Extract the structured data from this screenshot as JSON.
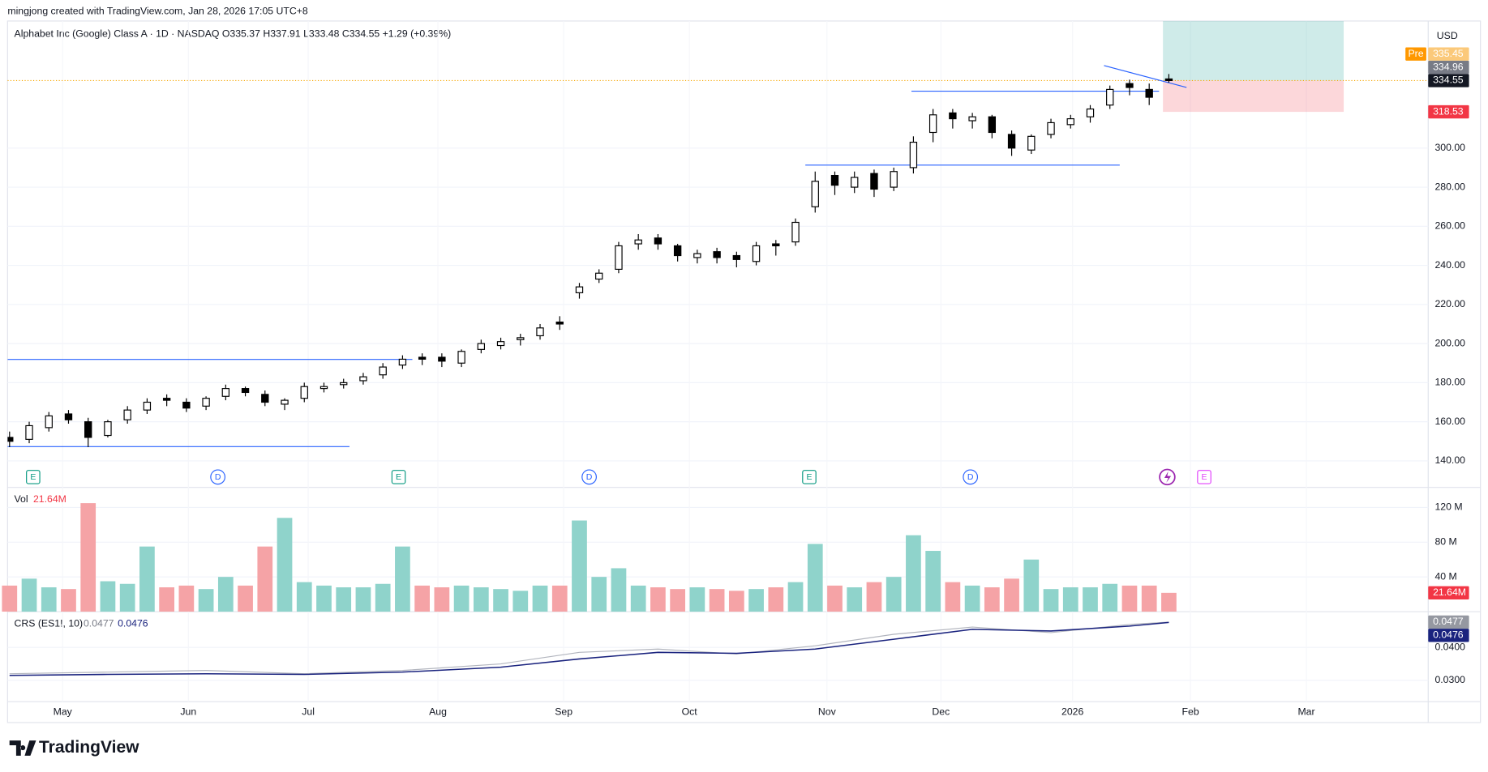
{
  "header": {
    "author_line": "mingjong created with TradingView.com, Jan 28, 2026 17:05 UTC+8",
    "legend": "Alphabet Inc (Google) Class A · 1D · NASDAQ  O335.37  H337.91  L333.48  C334.55  +1.29 (+0.39%)"
  },
  "footer": {
    "brand": "TradingView"
  },
  "chart_data": {
    "type": "candlestick",
    "currency": "USD",
    "xlim": [
      -0.1,
      72.2
    ],
    "xticks": [
      {
        "value": 2.7,
        "label": "May"
      },
      {
        "value": 9.1,
        "label": "Jun"
      },
      {
        "value": 15.2,
        "label": "Jul"
      },
      {
        "value": 21.8,
        "label": "Aug"
      },
      {
        "value": 28.2,
        "label": "Sep"
      },
      {
        "value": 34.6,
        "label": "Oct"
      },
      {
        "value": 41.6,
        "label": "Nov"
      },
      {
        "value": 47.4,
        "label": "Dec"
      },
      {
        "value": 54.1,
        "label": "2026"
      },
      {
        "value": 60.1,
        "label": "Feb"
      },
      {
        "value": 66.0,
        "label": "Mar"
      }
    ],
    "ylim": [
      126.4,
      365
    ],
    "yticks": [
      {
        "value": 140,
        "label": "140.00"
      },
      {
        "value": 160,
        "label": "160.00"
      },
      {
        "value": 180,
        "label": "180.00"
      },
      {
        "value": 200,
        "label": "200.00"
      },
      {
        "value": 220,
        "label": "220.00"
      },
      {
        "value": 240,
        "label": "240.00"
      },
      {
        "value": 260,
        "label": "260.00"
      },
      {
        "value": 280,
        "label": "280.00"
      },
      {
        "value": 300,
        "label": "300.00"
      }
    ],
    "grid": true,
    "up_color": "#ffffff",
    "down_color": "#000000",
    "open": [
      152,
      151,
      157,
      164,
      160,
      153,
      161,
      166,
      172,
      170,
      168,
      173,
      177,
      174,
      169,
      172,
      177,
      179,
      181,
      184,
      189,
      193,
      193,
      190,
      197,
      199,
      202,
      204,
      211,
      226,
      233,
      238,
      251,
      254,
      250,
      244,
      247,
      245,
      242,
      251,
      252,
      270,
      286,
      280,
      287,
      280,
      290,
      308,
      318,
      314,
      316,
      307,
      299,
      307,
      312,
      316,
      322,
      333,
      330,
      335.37
    ],
    "high": [
      155,
      160,
      165,
      166,
      162,
      161,
      168,
      172,
      174,
      172,
      173,
      179,
      178,
      176,
      172,
      180,
      180,
      182,
      185,
      190,
      194,
      195,
      195,
      197,
      202,
      203,
      205,
      210,
      214,
      231,
      238,
      252,
      256,
      256,
      251,
      248,
      249,
      247,
      252,
      253,
      264,
      288,
      288,
      288,
      289,
      290,
      306,
      320,
      320,
      318,
      317,
      309,
      307,
      315,
      317,
      322,
      332,
      335,
      333,
      337.91
    ],
    "low": [
      147,
      149,
      155,
      159,
      147,
      152,
      159,
      164,
      168,
      165,
      166,
      171,
      173,
      168,
      166,
      170,
      175,
      177,
      179,
      182,
      187,
      189,
      188,
      188,
      195,
      197,
      199,
      202,
      207,
      223,
      231,
      236,
      248,
      248,
      242,
      241,
      241,
      239,
      240,
      245,
      250,
      267,
      276,
      277,
      275,
      278,
      287,
      303,
      310,
      310,
      305,
      296,
      297,
      305,
      310,
      313,
      320,
      327,
      322,
      333.48
    ],
    "close": [
      150,
      158,
      163,
      161,
      152,
      160,
      166,
      170,
      171,
      167,
      172,
      177,
      175,
      170,
      171,
      178,
      178,
      180,
      183,
      188,
      192,
      192,
      191,
      196,
      200,
      201,
      203,
      208,
      210,
      229,
      236,
      250,
      253,
      251,
      245,
      246,
      244,
      243,
      250,
      250,
      262,
      283,
      281,
      285,
      279,
      288,
      303,
      317,
      315,
      316,
      308,
      300,
      306,
      313,
      315,
      320,
      330,
      331,
      326,
      334.55
    ],
    "line_color": "#2962ff",
    "hlines": [
      {
        "y": 191.9,
        "x": [
          -0.1,
          20.5
        ]
      },
      {
        "y": 147.3,
        "x": [
          -0.1,
          17.3
        ]
      },
      {
        "y": 291.3,
        "x": [
          40.5,
          56.5
        ]
      },
      {
        "y": 329.1,
        "x": [
          45.9,
          58.5
        ]
      }
    ],
    "trendline": {
      "x": [
        55.7,
        59.9
      ],
      "y": [
        342.2,
        331
      ]
    },
    "position": {
      "x": [
        58.7,
        67.9
      ],
      "entry": 334.55,
      "stop": 318.53,
      "target": 365,
      "profit_color": "rgba(38,166,154,0.22)",
      "loss_color": "rgba(242,54,69,0.2)"
    },
    "price_labels": [
      {
        "value": 335.45,
        "tag": "Pre",
        "tag_color": "#ff9800",
        "color": "#fbc97a"
      },
      {
        "value": 334.96,
        "color": "#787b86"
      },
      {
        "value": 334.55,
        "color": "#131722"
      },
      {
        "value": 318.53,
        "color": "#f23645"
      }
    ],
    "events": [
      {
        "x": 1.2,
        "label": "E",
        "shape": "square",
        "color": "#089981"
      },
      {
        "x": 10.6,
        "label": "D",
        "shape": "circle",
        "color": "#2962ff"
      },
      {
        "x": 19.8,
        "label": "E",
        "shape": "square",
        "color": "#089981"
      },
      {
        "x": 29.5,
        "label": "D",
        "shape": "circle",
        "color": "#2962ff"
      },
      {
        "x": 40.7,
        "label": "E",
        "shape": "square",
        "color": "#089981"
      },
      {
        "x": 48.9,
        "label": "D",
        "shape": "circle",
        "color": "#2962ff"
      },
      {
        "x": 60.8,
        "label": "E",
        "shape": "square",
        "color": "#e040fb"
      }
    ],
    "volume": {
      "title": "Vol",
      "current_label": "21.64M",
      "label_color": "#f23645",
      "up_color": "#8fd3cb",
      "down_color": "#f5a3a6",
      "ylim": [
        0,
        142
      ],
      "yticks": [
        {
          "value": 40,
          "label": "40 M"
        },
        {
          "value": 80,
          "label": "80 M"
        },
        {
          "value": 120,
          "label": "120 M"
        }
      ],
      "values": [
        30,
        38,
        28,
        26,
        125,
        35,
        32,
        75,
        28,
        30,
        26,
        40,
        30,
        75,
        108,
        34,
        30,
        28,
        28,
        32,
        75,
        30,
        28,
        30,
        28,
        26,
        24,
        30,
        30,
        105,
        40,
        50,
        30,
        28,
        26,
        28,
        26,
        24,
        26,
        28,
        34,
        78,
        30,
        28,
        34,
        40,
        88,
        70,
        34,
        30,
        28,
        38,
        60,
        26,
        28,
        28,
        32,
        30,
        30,
        21.64
      ]
    },
    "crs": {
      "title": "CRS (ES1!, 10)",
      "ylim": [
        0.0235,
        0.0506
      ],
      "yticks": [
        {
          "value": 0.03,
          "label": "0.0300"
        },
        {
          "value": 0.04,
          "label": "0.0400"
        }
      ],
      "x": [
        0,
        5,
        10,
        15,
        20,
        25,
        29,
        33,
        37,
        41,
        45,
        49,
        53,
        57,
        59
      ],
      "series": [
        {
          "color": "#b2b5be",
          "last_label": "0.0477",
          "values": [
            0.032,
            0.0325,
            0.033,
            0.032,
            0.033,
            0.035,
            0.0385,
            0.0395,
            0.038,
            0.0405,
            0.044,
            0.0462,
            0.0445,
            0.047,
            0.0477
          ]
        },
        {
          "color": "#1a237e",
          "last_label": "0.0476",
          "values": [
            0.0315,
            0.0318,
            0.032,
            0.0318,
            0.0325,
            0.034,
            0.0365,
            0.0385,
            0.0382,
            0.0395,
            0.0425,
            0.0455,
            0.045,
            0.0465,
            0.0476
          ]
        }
      ]
    }
  }
}
